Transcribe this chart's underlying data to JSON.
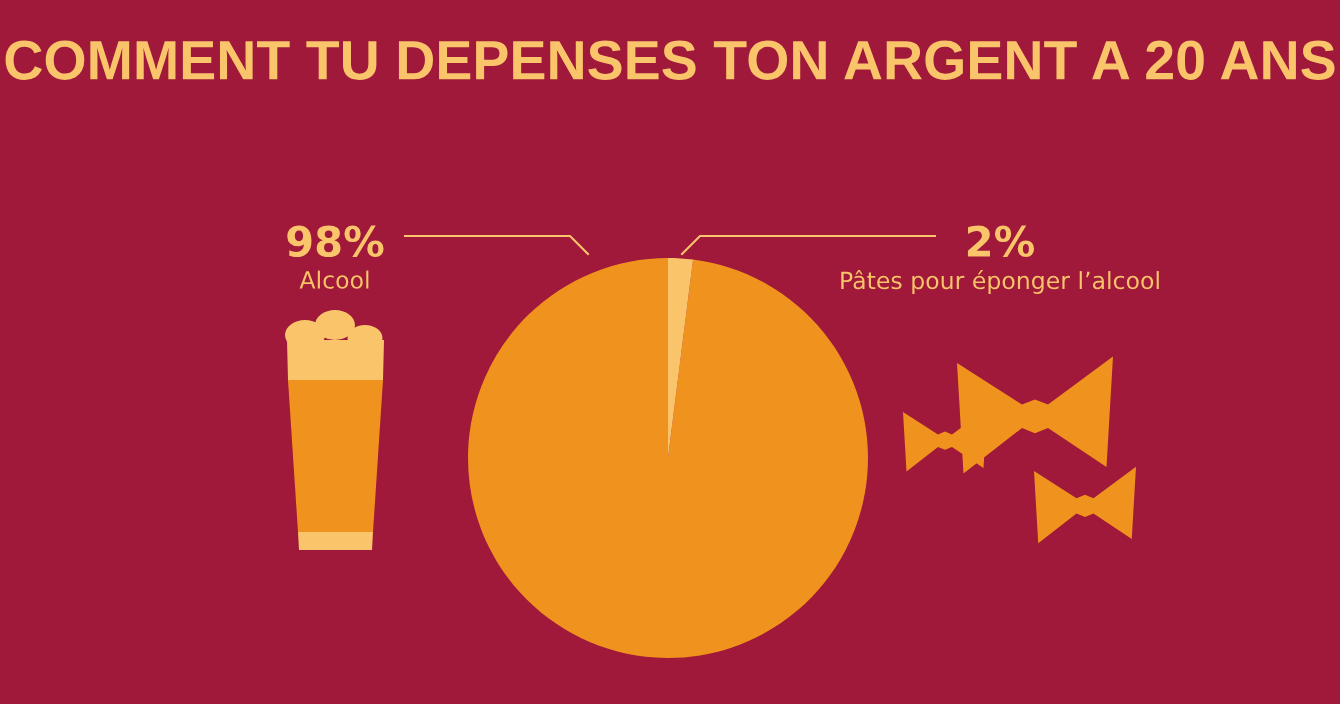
{
  "chart_data": {
    "type": "pie",
    "title": "COMMENT TU DEPENSES TON ARGENT A 20 ANS",
    "categories": [
      "Alcool",
      "Pâtes pour éponger l’alcool"
    ],
    "values": [
      98,
      2
    ],
    "value_labels": [
      "98%",
      "2%"
    ],
    "colors": [
      "#f0931e",
      "#f9c46a"
    ]
  }
}
